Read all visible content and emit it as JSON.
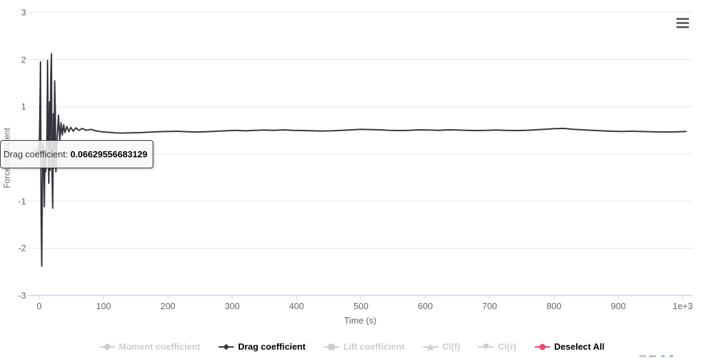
{
  "chart": {
    "y_axis": {
      "title": "Force coefficient",
      "tick_values": [
        3,
        2,
        1,
        0,
        -1,
        -2,
        -3
      ],
      "tick_labels": [
        "3",
        "2",
        "1",
        "0",
        "-1",
        "-2",
        "-3"
      ],
      "min": -3,
      "max": 3
    },
    "x_axis": {
      "title": "Time (s)",
      "tick_values": [
        0,
        100,
        200,
        300,
        400,
        500,
        600,
        700,
        800,
        900,
        1000
      ],
      "tick_labels": [
        "0",
        "100",
        "200",
        "300",
        "400",
        "500",
        "600",
        "700",
        "800",
        "900",
        "1e+3"
      ],
      "min": 0,
      "max": 1010
    },
    "colors": {
      "gridline": "#e6e6e6",
      "axis_line": "#ccd6eb",
      "axis_label": "#666666",
      "series_line": "#35353d",
      "disabled_legend": "#cccccc",
      "deselect_marker": "#e8486b",
      "hamburger": "#666666"
    }
  },
  "tooltip": {
    "label": "Drag coefficient:",
    "value": "0.06629556683129"
  },
  "legend": {
    "items": [
      {
        "label": "Moment coefficient",
        "marker": "circle",
        "color": "#cccccc",
        "enabled": false
      },
      {
        "label": "Drag coefficient",
        "marker": "diamond",
        "color": "#35353d",
        "enabled": true
      },
      {
        "label": "Lift coefficient",
        "marker": "square",
        "color": "#cccccc",
        "enabled": false
      },
      {
        "label": "Cl(f)",
        "marker": "triangle",
        "color": "#cccccc",
        "enabled": false
      },
      {
        "label": "Cl(r)",
        "marker": "triangle-down",
        "color": "#cccccc",
        "enabled": false
      },
      {
        "label": "Deselect All",
        "marker": "circle",
        "color": "#e8486b",
        "enabled": true
      }
    ]
  },
  "chart_data": {
    "type": "line",
    "title": "",
    "xlabel": "Time (s)",
    "ylabel": "Force coefficient",
    "xlim": [
      0,
      1010
    ],
    "ylim": [
      -3,
      3
    ],
    "grid": "horizontal",
    "legend_position": "bottom",
    "hover_point": {
      "series": "Drag coefficient",
      "x": 0,
      "y": 0.06629556683129
    },
    "series": [
      {
        "name": "Moment coefficient",
        "marker": "circle",
        "color": "#cccccc",
        "visible": false,
        "points": []
      },
      {
        "name": "Drag coefficient",
        "marker": "diamond",
        "color": "#35353d",
        "visible": true,
        "points": [
          [
            0,
            0.066
          ],
          [
            1,
            0.8
          ],
          [
            2,
            1.95
          ],
          [
            3,
            -1.2
          ],
          [
            4,
            -2.38
          ],
          [
            5,
            -0.6
          ],
          [
            6,
            0.22
          ],
          [
            7,
            -0.1
          ],
          [
            8,
            -1.12
          ],
          [
            9,
            0.05
          ],
          [
            10,
            -0.38
          ],
          [
            12,
            0.3
          ],
          [
            13,
            1.98
          ],
          [
            14,
            0.4
          ],
          [
            15,
            -0.62
          ],
          [
            16,
            1.1
          ],
          [
            17,
            -0.35
          ],
          [
            18,
            1.6
          ],
          [
            19,
            2.12
          ],
          [
            20,
            -0.45
          ],
          [
            21,
            -1.15
          ],
          [
            22,
            0.85
          ],
          [
            23,
            -0.3
          ],
          [
            24,
            1.55
          ],
          [
            25,
            0.95
          ],
          [
            26,
            -0.38
          ],
          [
            28,
            0.35
          ],
          [
            30,
            0.82
          ],
          [
            32,
            0.28
          ],
          [
            34,
            0.66
          ],
          [
            36,
            0.4
          ],
          [
            38,
            0.62
          ],
          [
            40,
            0.45
          ],
          [
            43,
            0.58
          ],
          [
            46,
            0.47
          ],
          [
            49,
            0.56
          ],
          [
            53,
            0.48
          ],
          [
            57,
            0.55
          ],
          [
            62,
            0.5
          ],
          [
            67,
            0.54
          ],
          [
            73,
            0.5
          ],
          [
            80,
            0.52
          ],
          [
            88,
            0.49
          ],
          [
            96,
            0.47
          ],
          [
            105,
            0.46
          ],
          [
            115,
            0.45
          ],
          [
            125,
            0.44
          ],
          [
            140,
            0.445
          ],
          [
            155,
            0.45
          ],
          [
            170,
            0.46
          ],
          [
            185,
            0.47
          ],
          [
            200,
            0.475
          ],
          [
            215,
            0.48
          ],
          [
            230,
            0.47
          ],
          [
            245,
            0.465
          ],
          [
            260,
            0.47
          ],
          [
            275,
            0.48
          ],
          [
            290,
            0.49
          ],
          [
            305,
            0.5
          ],
          [
            320,
            0.49
          ],
          [
            335,
            0.5
          ],
          [
            350,
            0.505
          ],
          [
            365,
            0.5
          ],
          [
            380,
            0.51
          ],
          [
            395,
            0.5
          ],
          [
            410,
            0.495
          ],
          [
            425,
            0.49
          ],
          [
            440,
            0.485
          ],
          [
            455,
            0.49
          ],
          [
            470,
            0.5
          ],
          [
            485,
            0.51
          ],
          [
            500,
            0.52
          ],
          [
            515,
            0.515
          ],
          [
            530,
            0.51
          ],
          [
            545,
            0.5
          ],
          [
            560,
            0.495
          ],
          [
            575,
            0.5
          ],
          [
            590,
            0.51
          ],
          [
            605,
            0.505
          ],
          [
            620,
            0.5
          ],
          [
            635,
            0.51
          ],
          [
            650,
            0.505
          ],
          [
            665,
            0.5
          ],
          [
            680,
            0.495
          ],
          [
            695,
            0.5
          ],
          [
            710,
            0.505
          ],
          [
            725,
            0.5
          ],
          [
            740,
            0.495
          ],
          [
            755,
            0.5
          ],
          [
            770,
            0.51
          ],
          [
            785,
            0.52
          ],
          [
            800,
            0.535
          ],
          [
            815,
            0.54
          ],
          [
            830,
            0.52
          ],
          [
            845,
            0.51
          ],
          [
            860,
            0.5
          ],
          [
            875,
            0.49
          ],
          [
            890,
            0.48
          ],
          [
            905,
            0.475
          ],
          [
            920,
            0.48
          ],
          [
            935,
            0.475
          ],
          [
            950,
            0.47
          ],
          [
            965,
            0.465
          ],
          [
            980,
            0.465
          ],
          [
            995,
            0.47
          ],
          [
            1005,
            0.475
          ]
        ]
      },
      {
        "name": "Lift coefficient",
        "marker": "square",
        "color": "#cccccc",
        "visible": false,
        "points": []
      },
      {
        "name": "Cl(f)",
        "marker": "triangle",
        "color": "#cccccc",
        "visible": false,
        "points": []
      },
      {
        "name": "Cl(r)",
        "marker": "triangle-down",
        "color": "#cccccc",
        "visible": false,
        "points": []
      }
    ]
  }
}
